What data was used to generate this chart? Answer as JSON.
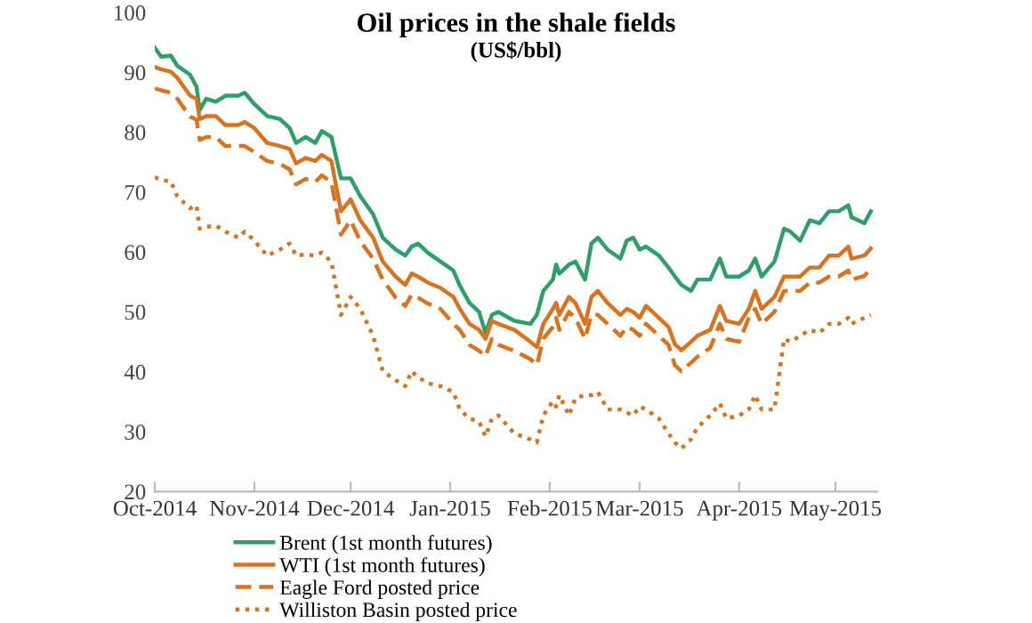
{
  "chart_data": {
    "type": "line",
    "title": "Oil prices in the shale fields",
    "subtitle": "(US$/bbl)",
    "x": [
      "2014-10-01",
      "2014-10-03",
      "2014-10-06",
      "2014-10-08",
      "2014-10-12",
      "2014-10-14",
      "2014-10-15",
      "2014-10-17",
      "2014-10-20",
      "2014-10-23",
      "2014-10-27",
      "2014-10-29",
      "2014-11-01",
      "2014-11-05",
      "2014-11-09",
      "2014-11-12",
      "2014-11-14",
      "2014-11-17",
      "2014-11-20",
      "2014-11-22",
      "2014-11-25",
      "2014-11-28",
      "2014-12-01",
      "2014-12-04",
      "2014-12-08",
      "2014-12-11",
      "2014-12-15",
      "2014-12-18",
      "2014-12-20",
      "2014-12-22",
      "2014-12-25",
      "2014-12-29",
      "2015-01-02",
      "2015-01-04",
      "2015-01-07",
      "2015-01-10",
      "2015-01-12",
      "2015-01-14",
      "2015-01-16",
      "2015-01-21",
      "2015-01-26",
      "2015-01-28",
      "2015-01-30",
      "2015-02-02",
      "2015-02-03",
      "2015-02-04",
      "2015-02-07",
      "2015-02-09",
      "2015-02-12",
      "2015-02-14",
      "2015-02-16",
      "2015-02-19",
      "2015-02-23",
      "2015-02-25",
      "2015-02-27",
      "2015-03-01",
      "2015-03-03",
      "2015-03-07",
      "2015-03-10",
      "2015-03-12",
      "2015-03-14",
      "2015-03-17",
      "2015-03-19",
      "2015-03-23",
      "2015-03-26",
      "2015-03-28",
      "2015-04-01",
      "2015-04-04",
      "2015-04-06",
      "2015-04-08",
      "2015-04-12",
      "2015-04-15",
      "2015-04-17",
      "2015-04-20",
      "2015-04-23",
      "2015-04-26",
      "2015-04-29",
      "2015-05-02",
      "2015-05-05",
      "2015-05-06",
      "2015-05-10",
      "2015-05-12"
    ],
    "series": [
      {
        "name": "Brent (1st month futures)",
        "color": "#2e9e6a",
        "line_style": "solid",
        "values": [
          94.1,
          92.6,
          92.8,
          91.1,
          89.6,
          87.6,
          83.7,
          85.6,
          85.1,
          86.1,
          86.1,
          86.6,
          84.7,
          82.7,
          82.2,
          80.7,
          78.2,
          79.2,
          78.2,
          80.2,
          79.2,
          72.3,
          72.3,
          69.3,
          66.3,
          62.4,
          60.4,
          59.4,
          60.9,
          61.4,
          59.9,
          58.4,
          56.9,
          54.4,
          51.5,
          50.0,
          46.5,
          49.5,
          50.0,
          48.5,
          48.0,
          49.5,
          53.5,
          55.4,
          57.9,
          56.4,
          57.9,
          58.4,
          55.4,
          61.4,
          62.4,
          60.4,
          58.9,
          61.9,
          62.4,
          60.4,
          60.9,
          59.4,
          57.4,
          55.9,
          54.5,
          53.5,
          55.4,
          55.4,
          58.9,
          55.9,
          55.9,
          56.9,
          58.9,
          55.9,
          58.4,
          63.9,
          63.4,
          61.9,
          65.3,
          64.8,
          66.8,
          66.8,
          67.8,
          65.8,
          64.8,
          66.8
        ]
      },
      {
        "name": "WTI (1st month futures)",
        "color": "#d9731f",
        "line_style": "solid",
        "values": [
          90.9,
          90.5,
          90.1,
          89.1,
          86.1,
          85.6,
          82.2,
          82.7,
          82.7,
          81.2,
          81.2,
          81.7,
          80.7,
          78.2,
          77.7,
          77.2,
          74.8,
          75.7,
          75.2,
          76.2,
          75.2,
          66.8,
          68.8,
          65.3,
          62.4,
          58.4,
          55.9,
          54.5,
          56.4,
          55.9,
          54.9,
          54.0,
          52.5,
          50.5,
          48.0,
          47.0,
          45.5,
          48.5,
          48.0,
          47.0,
          45.0,
          44.1,
          48.0,
          50.5,
          51.5,
          49.5,
          52.5,
          51.5,
          48.0,
          52.5,
          53.5,
          51.5,
          49.5,
          50.5,
          50.0,
          49.0,
          51.0,
          49.0,
          47.5,
          44.6,
          43.6,
          45.0,
          46.0,
          47.0,
          51.0,
          48.5,
          48.0,
          50.5,
          53.5,
          50.5,
          52.5,
          55.9,
          55.9,
          55.9,
          57.4,
          57.4,
          59.4,
          59.4,
          60.9,
          58.9,
          59.4,
          60.6
        ]
      },
      {
        "name": "Eagle Ford posted price",
        "color": "#d9731f",
        "line_style": "dashed",
        "values": [
          87.3,
          87.0,
          86.6,
          85.6,
          82.6,
          82.1,
          78.7,
          79.2,
          79.2,
          77.7,
          77.7,
          77.7,
          76.7,
          75.2,
          74.7,
          73.8,
          71.3,
          72.2,
          71.7,
          72.8,
          71.7,
          62.9,
          65.3,
          61.8,
          58.9,
          55.4,
          52.4,
          51.0,
          52.9,
          52.4,
          51.4,
          50.5,
          48.0,
          47.0,
          44.5,
          43.5,
          42.6,
          45.5,
          44.5,
          43.5,
          42.1,
          41.1,
          45.5,
          47.5,
          49.0,
          47.0,
          50.0,
          49.0,
          45.5,
          49.5,
          49.5,
          48.0,
          46.0,
          47.5,
          47.0,
          46.0,
          48.0,
          46.0,
          44.5,
          41.1,
          40.1,
          41.5,
          42.5,
          44.0,
          48.0,
          45.5,
          45.0,
          49.0,
          50.5,
          48.0,
          50.0,
          53.5,
          53.5,
          53.5,
          54.9,
          54.9,
          55.9,
          55.9,
          56.9,
          55.4,
          56.0,
          57.2
        ]
      },
      {
        "name": "Williston Basin posted price",
        "color": "#d9731f",
        "line_style": "dotted",
        "values": [
          72.5,
          72.0,
          71.8,
          69.3,
          67.3,
          67.8,
          63.9,
          64.2,
          64.4,
          63.4,
          62.4,
          63.4,
          61.9,
          59.4,
          60.4,
          61.4,
          59.4,
          59.6,
          59.4,
          59.9,
          58.4,
          49.5,
          52.5,
          50.5,
          46.0,
          40.1,
          38.6,
          37.6,
          40.1,
          39.1,
          38.1,
          37.6,
          36.6,
          33.7,
          32.2,
          31.7,
          29.2,
          32.2,
          32.7,
          29.7,
          28.7,
          28.2,
          32.7,
          35.1,
          34.2,
          36.1,
          32.7,
          35.6,
          36.1,
          36.1,
          36.6,
          33.7,
          33.7,
          33.2,
          32.7,
          34.2,
          33.7,
          32.2,
          29.7,
          28.2,
          27.2,
          28.7,
          30.7,
          32.7,
          34.7,
          32.2,
          32.7,
          33.7,
          36.1,
          33.7,
          33.7,
          45.5,
          45.0,
          46.0,
          47.0,
          46.5,
          48.0,
          48.0,
          49.0,
          48.0,
          49.0,
          49.5
        ]
      }
    ],
    "xlim": [
      "2014-10-01",
      "2015-05-14"
    ],
    "xticks": [
      {
        "value": "2014-10-01",
        "label": "Oct-2014"
      },
      {
        "value": "2014-11-01",
        "label": "Nov-2014"
      },
      {
        "value": "2014-12-01",
        "label": "Dec-2014"
      },
      {
        "value": "2015-01-01",
        "label": "Jan-2015"
      },
      {
        "value": "2015-02-01",
        "label": "Feb-2015"
      },
      {
        "value": "2015-03-01",
        "label": "Mar-2015"
      },
      {
        "value": "2015-04-01",
        "label": "Apr-2015"
      },
      {
        "value": "2015-05-01",
        "label": "May-2015"
      }
    ],
    "ylim": [
      20,
      100
    ],
    "yticks": [
      20,
      30,
      40,
      50,
      60,
      70,
      80,
      90,
      100
    ],
    "grid": false,
    "legend": "bottom",
    "marker": "none"
  }
}
